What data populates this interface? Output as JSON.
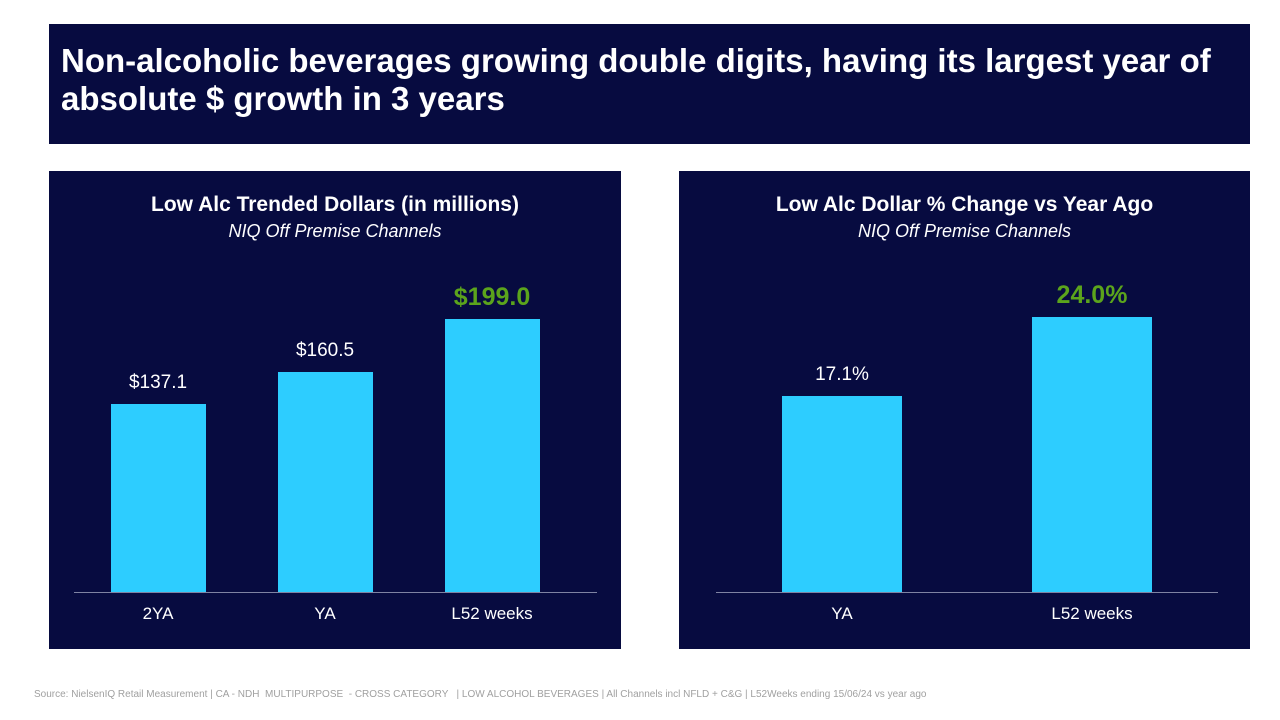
{
  "title": "Non-alcoholic beverages growing double digits, having its largest year of absolute $ growth in 3 years",
  "colors": {
    "background": "#070B40",
    "bar": "#2DCDFF",
    "highlight": "#5BA41C"
  },
  "chart_data": [
    {
      "type": "bar",
      "title": "Low Alc Trended Dollars (in millions)",
      "subtitle": "NIQ Off Premise Channels",
      "categories": [
        "2YA",
        "YA",
        "L52 weeks"
      ],
      "values": [
        137.1,
        160.5,
        199.0
      ],
      "data_labels": [
        "$137.1",
        "$160.5",
        "$199.0"
      ],
      "highlighted": [
        false,
        false,
        true
      ],
      "ylim": [
        0,
        199
      ],
      "grid": false
    },
    {
      "type": "bar",
      "title": "Low Alc Dollar % Change vs Year Ago",
      "subtitle": "NIQ Off Premise Channels",
      "categories": [
        "YA",
        "L52 weeks"
      ],
      "values": [
        17.1,
        24.0
      ],
      "data_labels": [
        "17.1%",
        "24.0%"
      ],
      "highlighted": [
        false,
        true
      ],
      "ylim": [
        0,
        24
      ],
      "grid": false
    }
  ],
  "source": "Source: NielsenIQ Retail Measurement | CA - NDH  MULTIPURPOSE  - CROSS CATEGORY   | LOW ALCOHOL BEVERAGES | All Channels incl NFLD + C&G | L52Weeks ending 15/06/24 vs year ago"
}
